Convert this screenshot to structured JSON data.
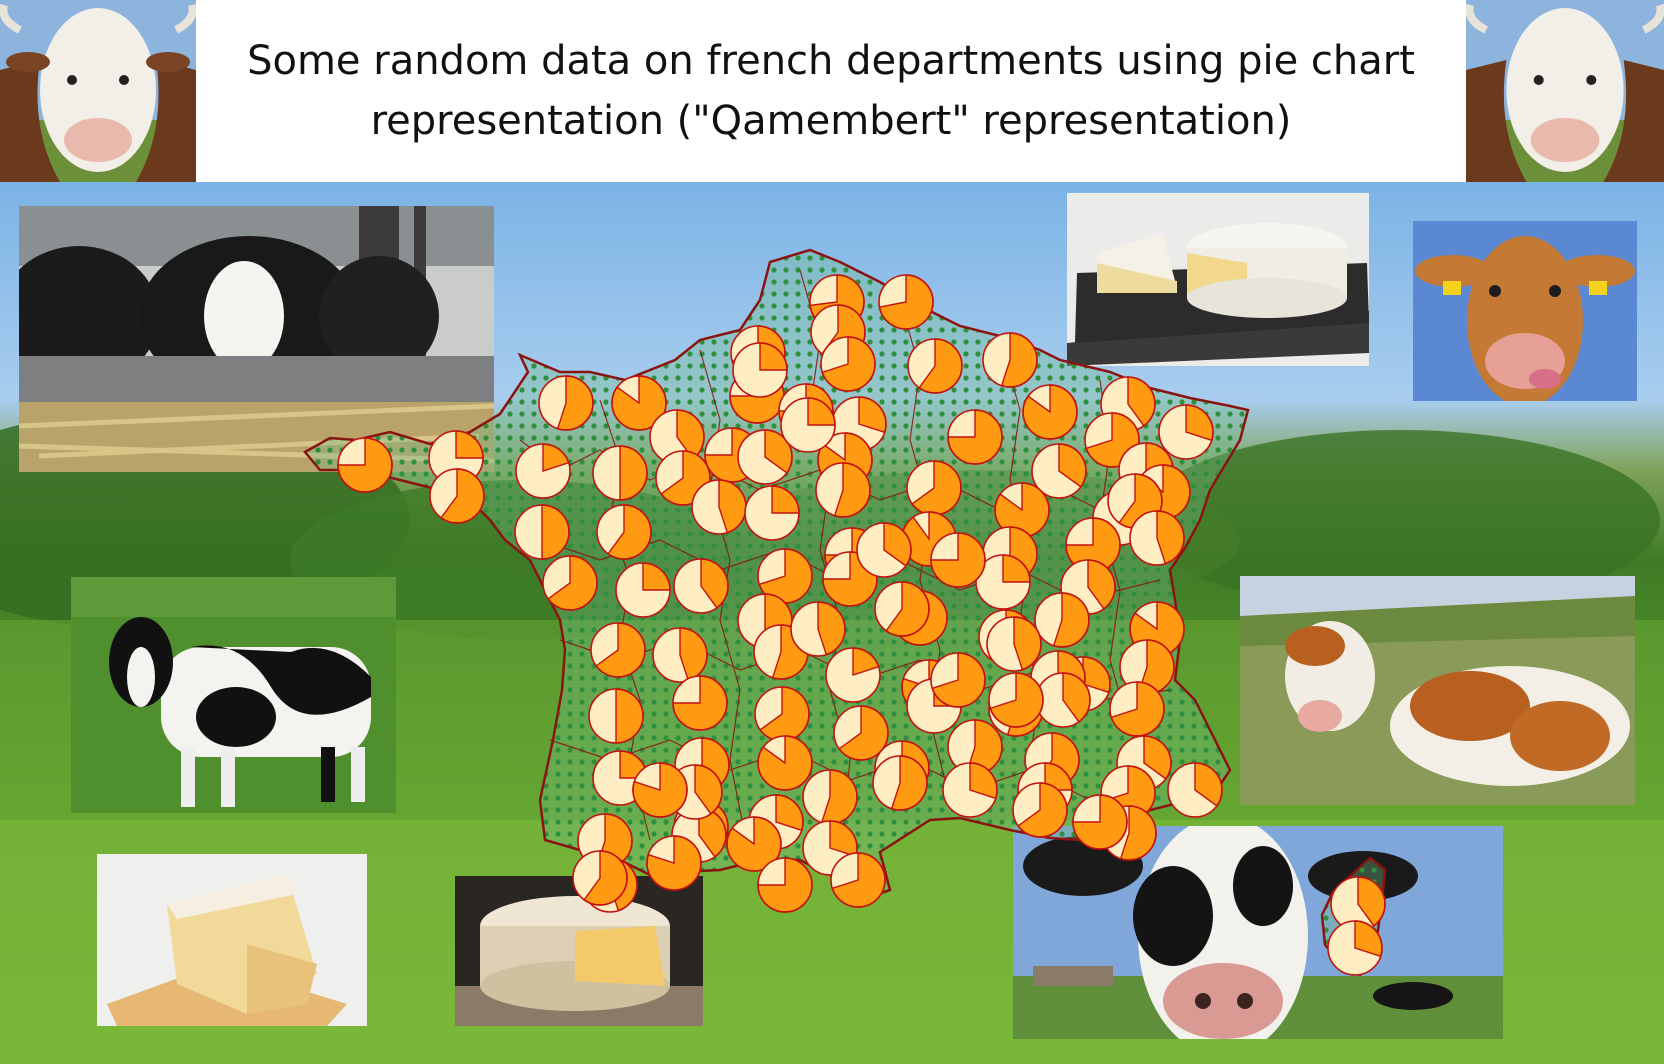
{
  "title": "Some random data on french departments using pie chart representation (\"Qamembert\" representation)",
  "colors": {
    "pie_fill": "#ff9a12",
    "pie_base": "#ffeec4",
    "pie_edge": "#c3120e",
    "map_fill": "#3f9a4a",
    "map_border": "#8a1410"
  },
  "photos": [
    {
      "name": "cow-photo-top-left",
      "kind": "cow"
    },
    {
      "name": "cow-photo-top-right",
      "kind": "cow"
    },
    {
      "name": "cow-photo-barn",
      "kind": "cow"
    },
    {
      "name": "cheese-photo-slate",
      "kind": "cheese"
    },
    {
      "name": "cow-photo-licking",
      "kind": "cow"
    },
    {
      "name": "cow-photo-holstein",
      "kind": "cow"
    },
    {
      "name": "cow-photo-lying",
      "kind": "cow"
    },
    {
      "name": "cheese-photo-wedges",
      "kind": "cheese"
    },
    {
      "name": "cheese-photo-wheel",
      "kind": "cheese"
    },
    {
      "name": "cow-photo-closeup",
      "kind": "cow"
    }
  ],
  "chart_data": {
    "type": "pie",
    "title": "Some random data on french departments using pie chart representation (\"Qamembert\" representation)",
    "legend": "none",
    "series": [
      {
        "values": [
          0.73,
          0.72,
          0.75,
          0.25,
          0.6,
          0.55,
          0.85,
          0.7,
          0.6,
          0.75,
          0.7,
          0.4,
          0.75,
          0.75,
          0.3,
          0.6,
          0.55,
          0.75,
          0.85,
          0.4,
          0.7,
          0.3,
          0.2,
          0.5,
          0.65,
          0.35,
          0.85,
          0.35,
          0.55,
          0.85,
          0.5,
          0.6,
          0.45,
          0.25,
          0.55,
          0.65,
          0.85,
          0.35,
          0.6,
          0.65,
          0.25,
          0.4,
          0.7,
          0.75,
          0.9,
          0.55,
          0.75,
          0.45,
          0.65,
          0.45,
          0.5,
          0.75,
          0.7,
          0.25,
          0.4,
          0.85,
          0.5,
          0.75,
          0.55,
          0.45,
          0.6,
          0.25,
          0.55,
          0.55,
          0.25,
          0.4,
          0.65,
          0.2,
          0.8,
          0.45,
          0.3,
          0.55,
          0.7,
          0.85,
          0.65,
          0.25,
          0.55,
          0.7,
          0.35,
          0.45,
          0.4,
          0.3,
          0.55,
          0.65,
          0.55,
          0.6,
          0.7,
          0.8,
          0.85,
          0.3,
          0.55,
          0.3,
          0.25,
          0.55,
          0.35,
          0.4,
          0.75,
          0.7,
          0.5,
          0.65,
          0.6,
          0.8,
          0.25,
          0.35,
          0.75,
          0.4,
          0.7,
          0.4,
          0.3,
          0.75,
          0.25,
          0.7
        ]
      }
    ]
  }
}
